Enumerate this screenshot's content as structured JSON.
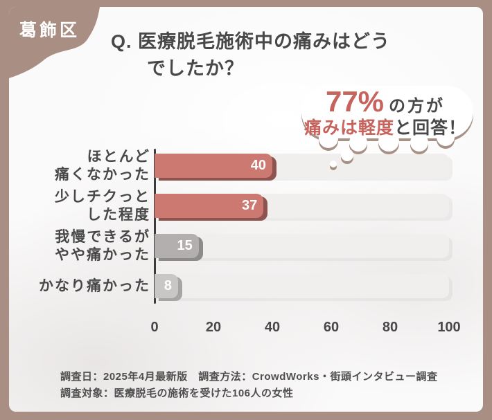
{
  "badge": {
    "label": "葛飾区"
  },
  "title": {
    "line1": "Q. 医療脱毛施術中の痛みはどう",
    "line2": "でしたか？"
  },
  "callout": {
    "line1_highlight": "77%",
    "line1_rest": "の方が",
    "line2_highlight": "痛みは軽度",
    "line2_rest": "と回答！"
  },
  "chart_data": {
    "type": "bar",
    "orientation": "horizontal",
    "title": "Q. 医療脱毛施術中の痛みはどうでしたか？",
    "categories": [
      "ほとんど痛くなかった",
      "少しチクっとした程度",
      "我慢できるがやや痛かった",
      "かなり痛かった"
    ],
    "category_lines": [
      [
        "ほとんど",
        "痛くなかった"
      ],
      [
        "少しチクっと",
        "した程度"
      ],
      [
        "我慢できるが",
        "やや痛かった"
      ],
      [
        "かなり痛かった"
      ]
    ],
    "values": [
      40,
      37,
      15,
      8
    ],
    "value_labels": [
      "40",
      "37",
      "15",
      "8"
    ],
    "bar_colors": [
      "#cb7971",
      "#cb7971",
      "#b3afaf",
      "#c9c6c6"
    ],
    "bar_shadow_colors": [
      "#8e534e",
      "#8e534e",
      "#8e8b8b",
      "#a7a4a4"
    ],
    "x_ticks": [
      0,
      20,
      40,
      60,
      80,
      100
    ],
    "xlim": [
      0,
      100
    ],
    "grid": false,
    "legend": false
  },
  "footer": {
    "line1": "調査日：2025年4月最新版　調査方法：CrowdWorks・街頭インタビュー調査",
    "line2": "調査対象：医療脱毛の施術を受けた106人の女性"
  },
  "colors": {
    "frame": "#a98e83",
    "accent": "#cb7971",
    "accent_dark": "#8e534e",
    "text_dark": "#484848",
    "red_text": "#c5635c",
    "track": "#f1efee",
    "axis": "#3c3c3c"
  }
}
